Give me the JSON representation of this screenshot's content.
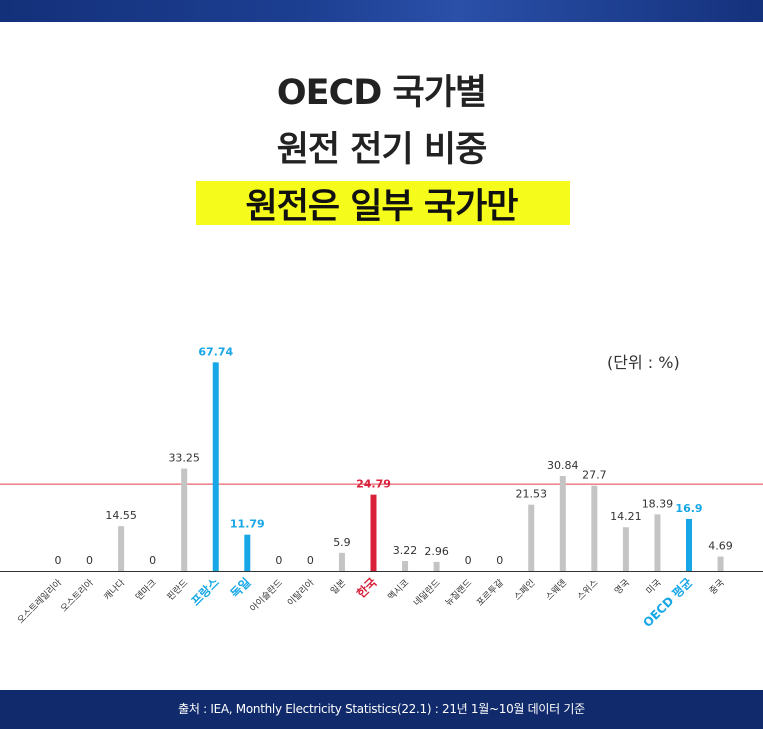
{
  "header": {
    "title_line1": "OECD 국가별",
    "title_line2": "원전 전기 비중",
    "title_line3": "원전은 일부 국가만"
  },
  "unit_label": "(단위 : %)",
  "footer": {
    "source": "출처 : IEA, Monthly Electricity Statistics(22.1) : 21년 1월~10월 데이터 기준"
  },
  "colors": {
    "default_bar": "#c4c4c4",
    "highlight_bar": "#17a7e6",
    "korea_bar": "#d8203a",
    "reference_line": "#e23c48"
  },
  "chart_data": {
    "type": "bar",
    "title": "",
    "xlabel": "",
    "ylabel": "",
    "ylim": [
      0,
      70
    ],
    "grid": false,
    "categories": [
      "오스트레일리아",
      "오스트리아",
      "캐나다",
      "덴마크",
      "핀란드",
      "프랑스",
      "독일",
      "아이슬란드",
      "이탈리아",
      "일본",
      "한국",
      "멕시코",
      "네덜란드",
      "뉴질랜드",
      "포르투갈",
      "스페인",
      "스웨덴",
      "스위스",
      "영국",
      "미국",
      "OECD 평균",
      "중국"
    ],
    "values": [
      0,
      0,
      14.55,
      0,
      33.25,
      67.74,
      11.79,
      0,
      0,
      5.9,
      24.79,
      3.22,
      2.96,
      0,
      0,
      21.53,
      30.84,
      27.7,
      14.21,
      18.39,
      16.9,
      4.69
    ],
    "value_labels": [
      "0",
      "0",
      "14.55",
      "0",
      "33.25",
      "67.74",
      "11.79",
      "0",
      "0",
      "5.9",
      "24.79",
      "3.22",
      "2.96",
      "0",
      "0",
      "21.53",
      "30.84",
      "27.7",
      "14.21",
      "18.39",
      "16.9",
      "4.69"
    ],
    "highlight": [
      "default",
      "default",
      "default",
      "default",
      "default",
      "blue",
      "blue",
      "default",
      "default",
      "default",
      "red",
      "default",
      "default",
      "default",
      "default",
      "default",
      "default",
      "default",
      "default",
      "default",
      "blue",
      "default"
    ],
    "reference_line_value": 28.2
  }
}
